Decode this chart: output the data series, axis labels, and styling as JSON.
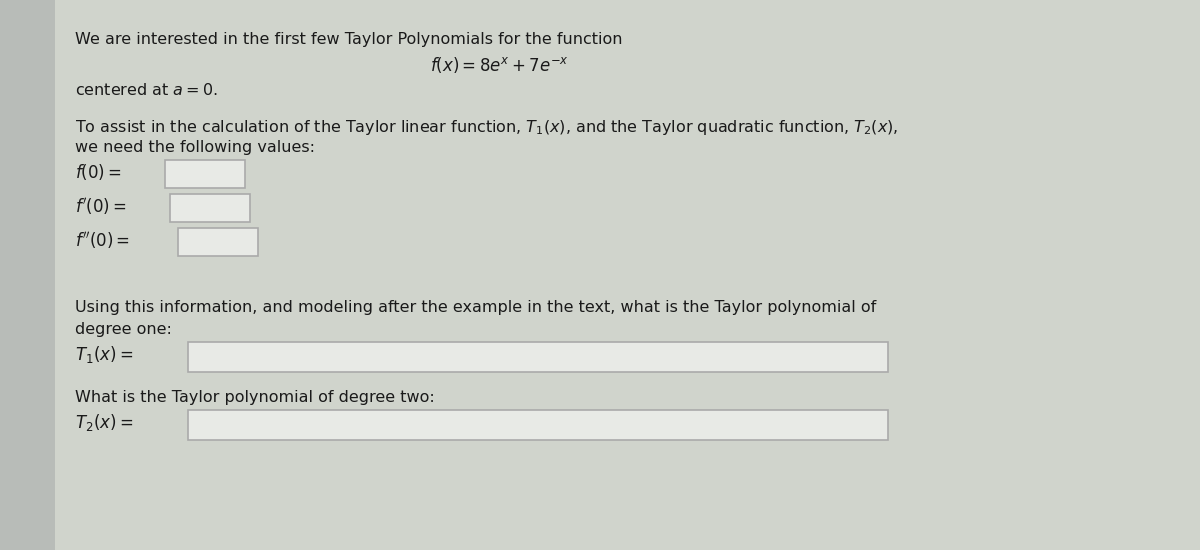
{
  "bg_color": "#d0d4cc",
  "content_bg": "#c8ccca",
  "left_strip_color": "#b0b4b0",
  "text_color": "#1a1a1a",
  "box_color": "#e8eae6",
  "box_edge_color": "#aaaaaa",
  "line1": "We are interested in the first few Taylor Polynomials for the function",
  "line2": "$f(x) = 8e^{x} + 7e^{-x}$",
  "line3": "centered at $a = 0$.",
  "line4a": "To assist in the calculation of the Taylor linear function, $T_1(x)$, and the Taylor quadratic function, $T_2(x)$,",
  "line4b": "we need the following values:",
  "label_f0": "$f(0) =$",
  "label_fp0": "$f'(0) =$",
  "label_fpp0": "$f''(0) =$",
  "line_using": "Using this information, and modeling after the example in the text, what is the Taylor polynomial of",
  "line_degree_one": "degree one:",
  "label_T1": "$T_1(x) =$",
  "line_degree_two": "What is the Taylor polynomial of degree two:",
  "label_T2": "$T_2(x) =$",
  "font_size_main": 11.5,
  "font_size_math": 12.0,
  "font_size_labels": 12.0
}
